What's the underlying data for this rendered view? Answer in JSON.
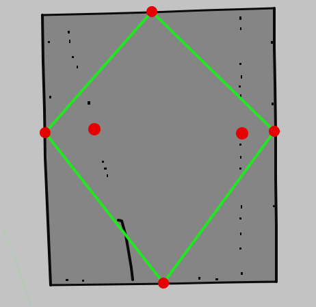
{
  "view": {
    "background_color": "#c3c3c3",
    "map_free_color": "#858585",
    "map_wall_color": "#0a0a0a",
    "boundary_color": "#22e622",
    "marker_color": "#e60000",
    "grid_line_color": "#a6cfa6"
  },
  "map": {
    "description_icon": "occupancy-grid-map"
  },
  "polygon": {
    "vertex_count": 4,
    "closed": true
  },
  "markers": {
    "count": 6,
    "icon": "waypoint-dot"
  }
}
